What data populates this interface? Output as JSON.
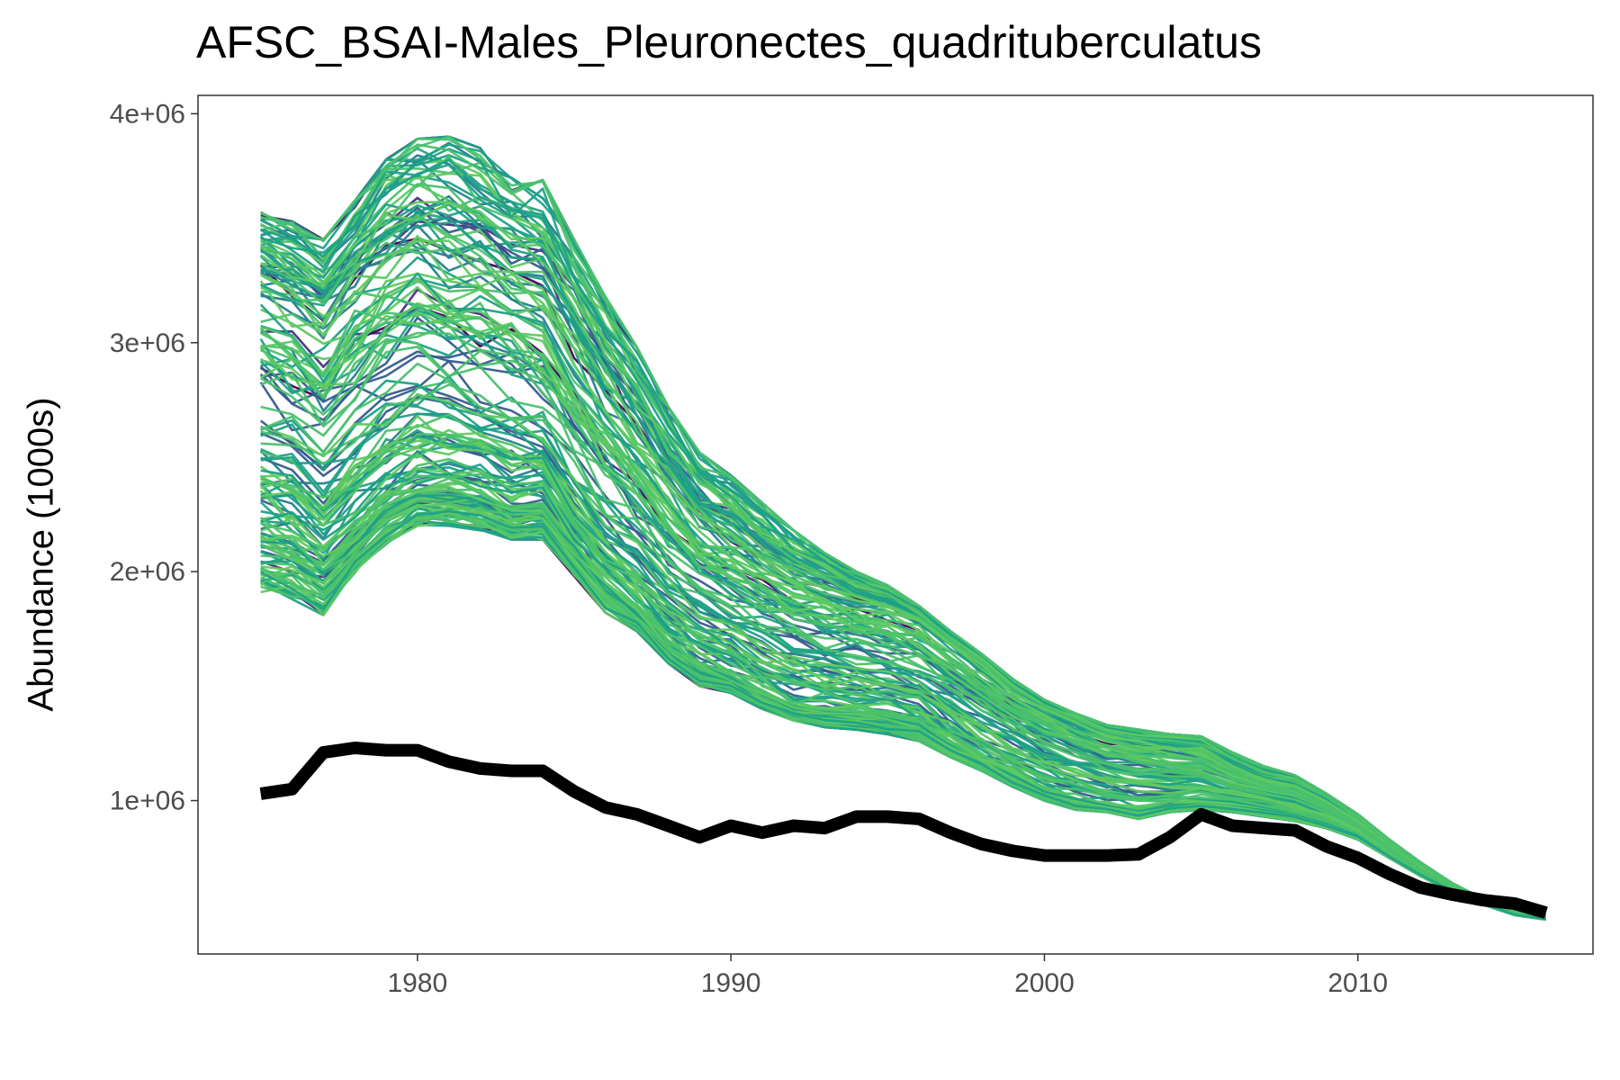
{
  "chart_data": {
    "type": "line",
    "title": "AFSC_BSAI-Males_Pleuronectes_quadrituberculatus",
    "xlabel": "",
    "ylabel": "Abundance (1000s)",
    "xlim": [
      1973,
      2017.5
    ],
    "ylim": [
      330000,
      4080000
    ],
    "x_ticks": [
      1980,
      1990,
      2000,
      2010
    ],
    "x_tick_labels": [
      "1980",
      "1990",
      "2000",
      "2010"
    ],
    "y_ticks": [
      1000000,
      2000000,
      3000000,
      4000000
    ],
    "y_tick_labels": [
      "1e+06",
      "2e+06",
      "3e+06",
      "4e+06"
    ],
    "grid": false,
    "legend": "none",
    "ensemble": {
      "x": [
        1975,
        1976,
        1977,
        1978,
        1979,
        1980,
        1981,
        1982,
        1983,
        1984,
        1985,
        1986,
        1987,
        1988,
        1989,
        1990,
        1991,
        1992,
        1993,
        1994,
        1995,
        1996,
        1997,
        1998,
        1999,
        2000,
        2001,
        2002,
        2003,
        2004,
        2005,
        2006,
        2007,
        2008,
        2009,
        2010,
        2011,
        2012,
        2013,
        2014,
        2015,
        2016
      ],
      "upper": [
        3570000,
        3530000,
        3450000,
        3620000,
        3800000,
        3890000,
        3900000,
        3850000,
        3720000,
        3710000,
        3450000,
        3200000,
        2980000,
        2720000,
        2520000,
        2420000,
        2300000,
        2180000,
        2080000,
        2000000,
        1940000,
        1850000,
        1740000,
        1640000,
        1530000,
        1440000,
        1380000,
        1330000,
        1310000,
        1290000,
        1280000,
        1210000,
        1150000,
        1110000,
        1030000,
        940000,
        830000,
        730000,
        640000,
        570000,
        520000,
        500000
      ],
      "upper_mid": [
        3250000,
        3180000,
        3100000,
        3250000,
        3350000,
        3400000,
        3350000,
        3300000,
        3240000,
        3190000,
        2960000,
        2740000,
        2560000,
        2380000,
        2200000,
        2120000,
        2040000,
        1970000,
        1920000,
        1880000,
        1840000,
        1790000,
        1680000,
        1580000,
        1470000,
        1390000,
        1330000,
        1280000,
        1250000,
        1230000,
        1210000,
        1140000,
        1090000,
        1060000,
        990000,
        910000,
        800000,
        710000,
        630000,
        560000,
        515000,
        495000
      ],
      "center": [
        2650000,
        2600000,
        2480000,
        2620000,
        2740000,
        2800000,
        2780000,
        2730000,
        2680000,
        2640000,
        2430000,
        2260000,
        2140000,
        1990000,
        1880000,
        1820000,
        1750000,
        1690000,
        1650000,
        1620000,
        1590000,
        1560000,
        1480000,
        1390000,
        1310000,
        1240000,
        1190000,
        1150000,
        1120000,
        1110000,
        1100000,
        1060000,
        1030000,
        1000000,
        950000,
        880000,
        780000,
        700000,
        620000,
        555000,
        510000,
        490000
      ],
      "lower_mid": [
        2200000,
        2160000,
        2060000,
        2180000,
        2300000,
        2380000,
        2380000,
        2360000,
        2300000,
        2300000,
        2120000,
        1960000,
        1840000,
        1700000,
        1600000,
        1550000,
        1480000,
        1420000,
        1400000,
        1390000,
        1370000,
        1340000,
        1250000,
        1180000,
        1110000,
        1040000,
        1000000,
        980000,
        960000,
        980000,
        990000,
        980000,
        960000,
        940000,
        900000,
        850000,
        760000,
        680000,
        610000,
        550000,
        505000,
        485000
      ],
      "lower": [
        1910000,
        1880000,
        1810000,
        1980000,
        2120000,
        2200000,
        2200000,
        2180000,
        2140000,
        2140000,
        1980000,
        1820000,
        1740000,
        1600000,
        1500000,
        1470000,
        1400000,
        1350000,
        1320000,
        1310000,
        1290000,
        1260000,
        1190000,
        1130000,
        1060000,
        1000000,
        960000,
        950000,
        920000,
        950000,
        960000,
        950000,
        930000,
        910000,
        880000,
        830000,
        750000,
        670000,
        600000,
        545000,
        500000,
        480000
      ]
    },
    "series": [
      {
        "x": [
          1975,
          1976,
          1977,
          1978,
          1979,
          1980,
          1981,
          1982,
          1983,
          1984,
          1985,
          1986,
          1987,
          1988,
          1989,
          1990,
          1991,
          1992,
          1993,
          1994,
          1995,
          1996,
          1997,
          1998,
          1999,
          2000,
          2001,
          2002,
          2003,
          2004,
          2005,
          2006,
          2007,
          2008,
          2009,
          2010,
          2011,
          2012,
          2013,
          2014,
          2015,
          2016
        ],
        "values": [
          1030000,
          1050000,
          1210000,
          1230000,
          1220000,
          1220000,
          1170000,
          1140000,
          1130000,
          1130000,
          1040000,
          970000,
          940000,
          890000,
          840000,
          890000,
          860000,
          890000,
          880000,
          930000,
          930000,
          920000,
          860000,
          810000,
          780000,
          760000,
          760000,
          760000,
          765000,
          840000,
          940000,
          890000,
          880000,
          870000,
          800000,
          750000,
          680000,
          620000,
          590000,
          565000,
          550000,
          510000
        ],
        "color": "#000000"
      }
    ],
    "palette": [
      "#440154",
      "#46327e",
      "#365c8d",
      "#277f8e",
      "#1fa187",
      "#4ac16d",
      "#5ec962"
    ]
  }
}
